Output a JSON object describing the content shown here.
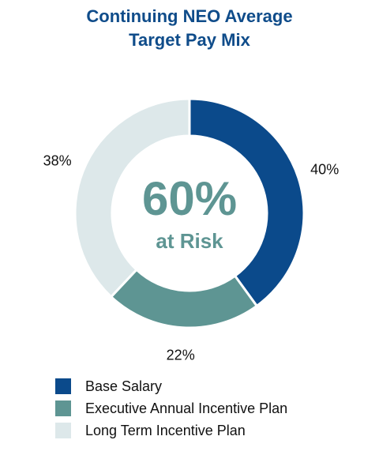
{
  "chart_data": {
    "type": "pie",
    "title_line1": "Continuing NEO Average",
    "title_line2": "Target Pay Mix",
    "center_value": "60%",
    "center_label": "at Risk",
    "slices": [
      {
        "name": "Base Salary",
        "value": 40,
        "label": "40%",
        "color": "#0b4a8b"
      },
      {
        "name": "Executive Annual Incentive Plan",
        "value": 22,
        "label": "22%",
        "color": "#5e9593"
      },
      {
        "name": "Long Term Incentive Plan",
        "value": 38,
        "label": "38%",
        "color": "#dde8ea"
      }
    ],
    "legend_position": "bottom-left",
    "title_color": "#0f4c8a",
    "center_text_color": "#5e9593"
  }
}
